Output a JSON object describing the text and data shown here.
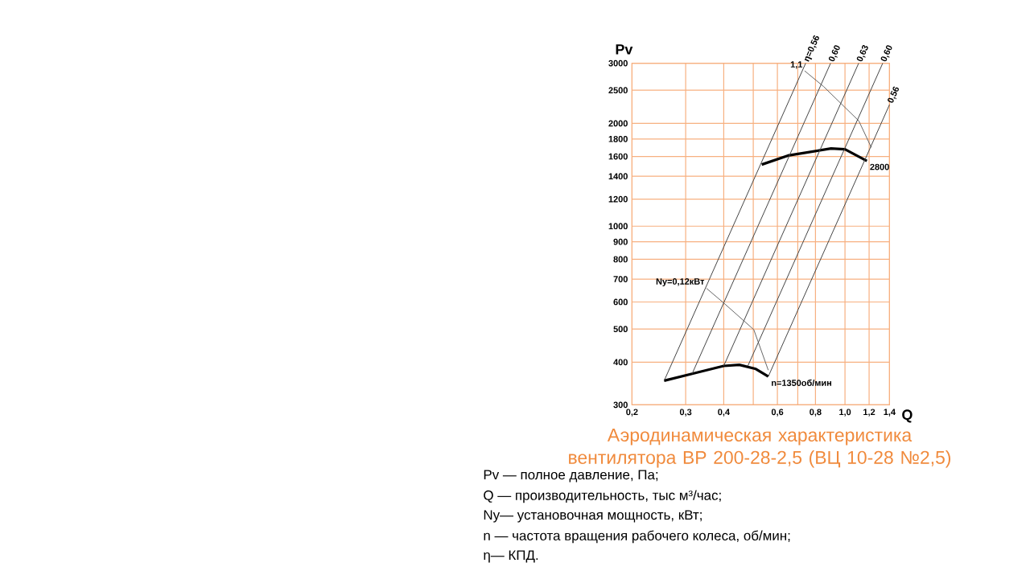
{
  "chart_data": {
    "type": "line",
    "title": "Аэродинамическая характеристика вентилятора ВР 200-28-2,5 (ВЦ 10-28 №2,5)",
    "xlabel": "Q",
    "ylabel": "Pv",
    "log": "xy",
    "grid": true,
    "xlim": [
      0.2,
      1.4
    ],
    "ylim": [
      300,
      3000
    ],
    "xticks": [
      {
        "value": 0.2,
        "label": "0,2"
      },
      {
        "value": 0.3,
        "label": "0,3"
      },
      {
        "value": 0.4,
        "label": "0,4"
      },
      {
        "value": 0.5,
        "label": null
      },
      {
        "value": 0.6,
        "label": "0,6"
      },
      {
        "value": 0.7,
        "label": null
      },
      {
        "value": 0.8,
        "label": "0,8"
      },
      {
        "value": 1.0,
        "label": "1,0"
      },
      {
        "value": 1.2,
        "label": "1,2"
      },
      {
        "value": 1.4,
        "label": "1,4"
      }
    ],
    "yticks": [
      300,
      400,
      500,
      600,
      700,
      800,
      900,
      1000,
      1200,
      1400,
      1600,
      1800,
      2000,
      2500,
      3000
    ],
    "series": [
      {
        "name": "n=1350об/мин",
        "color": "#000000",
        "x": [
          0.255,
          0.315,
          0.4,
          0.45,
          0.51,
          0.56
        ],
        "values": [
          353,
          370,
          390,
          393,
          382,
          363
        ]
      },
      {
        "name": "2800",
        "color": "#000000",
        "x": [
          0.533,
          0.65,
          0.9,
          1.0,
          1.18
        ],
        "values": [
          1515,
          1610,
          1689,
          1680,
          1553
        ]
      },
      {
        "name": "Ny=0,12кВт",
        "color": "#666666",
        "x": [
          0.351,
          0.4,
          0.502,
          0.56
        ],
        "values": [
          658,
          596,
          498,
          379
        ]
      },
      {
        "name": "1,1",
        "color": "#666666",
        "x": [
          0.737,
          0.85,
          1.11,
          1.22
        ],
        "values": [
          2850,
          2565,
          2034,
          1700
        ]
      },
      {
        "name": "η=0,56",
        "color": "#444444",
        "x": [
          0.255,
          0.743
        ],
        "values": [
          353,
          3000
        ]
      },
      {
        "name": "0,60",
        "color": "#444444",
        "x": [
          0.315,
          0.897
        ],
        "values": [
          370,
          3000
        ]
      },
      {
        "name": "0,63",
        "color": "#444444",
        "x": [
          0.4,
          1.109
        ],
        "values": [
          390,
          3000
        ]
      },
      {
        "name": "0,60",
        "color": "#444444",
        "x": [
          0.48,
          1.33
        ],
        "values": [
          390,
          3000
        ]
      },
      {
        "name": "0,56",
        "color": "#444444",
        "x": [
          0.56,
          1.4
        ],
        "values": [
          363,
          2269
        ]
      }
    ],
    "annotations": [
      "Pv — полное давление, Па;",
      "Q — производительность, тыс м³/час;",
      "Ny— установочная мощность, кВт;",
      "n — частота вращения рабочего колеса,  об/мин;",
      "η— КПД."
    ]
  }
}
